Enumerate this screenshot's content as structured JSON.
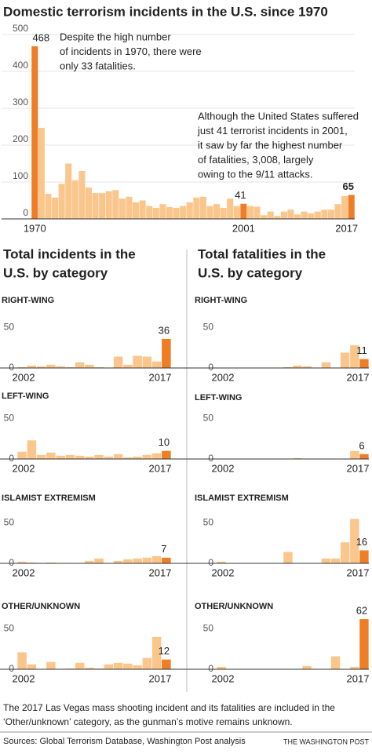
{
  "chart_data": [
    {
      "type": "bar",
      "title": "Domestic terrorism incidents in the U.S. since 1970",
      "categories": [
        "1970",
        null,
        null,
        null,
        null,
        null,
        null,
        null,
        null,
        null,
        null,
        null,
        null,
        null,
        null,
        null,
        null,
        null,
        null,
        null,
        null,
        null,
        null,
        null,
        null,
        null,
        null,
        null,
        null,
        null,
        null,
        "2001",
        null,
        null,
        null,
        null,
        null,
        null,
        null,
        null,
        null,
        null,
        null,
        null,
        null,
        null,
        null,
        "2017"
      ],
      "values": [
        468,
        247,
        68,
        58,
        95,
        150,
        105,
        130,
        85,
        70,
        70,
        75,
        78,
        55,
        60,
        45,
        50,
        35,
        30,
        40,
        32,
        30,
        35,
        45,
        58,
        60,
        35,
        40,
        30,
        55,
        35,
        41,
        35,
        33,
        10,
        20,
        8,
        20,
        25,
        12,
        20,
        15,
        20,
        25,
        25,
        40,
        62,
        65
      ],
      "color": "#fbc68c",
      "highlight_color": "#ee7d25",
      "highlight": [
        "1970",
        "2001",
        "2017"
      ],
      "ylim": [
        0,
        500
      ],
      "yticks": [
        0,
        100,
        200,
        300,
        400,
        500
      ],
      "grid": true,
      "annotations": [
        [
          "Despite the high number",
          "of incidents in 1970, there were",
          "only 33 fatalities."
        ],
        [
          "Although the United States suffered",
          "just 41 terrorist incidents in 2001,",
          "it saw by far the highest number",
          "of fatalities, 3,008, largely",
          "owing to the 9/11 attacks."
        ]
      ]
    },
    {
      "type": "bar",
      "title": "RIGHT-WING",
      "categories": [
        "2002",
        null,
        null,
        null,
        null,
        null,
        null,
        null,
        null,
        null,
        null,
        null,
        null,
        null,
        null,
        "2017"
      ],
      "values": [
        1,
        3,
        2,
        4,
        2,
        1,
        7,
        4,
        1,
        0,
        14,
        4,
        15,
        14,
        8,
        36
      ],
      "color": "#fbc68c",
      "highlight_color": "#ee7d25",
      "highlight": [
        "2017"
      ],
      "ylim": [
        0,
        65
      ],
      "yticks": [
        0,
        50
      ],
      "grid": false
    },
    {
      "type": "bar",
      "title": "LEFT-WING",
      "categories": [
        "2002",
        null,
        null,
        null,
        null,
        null,
        null,
        null,
        null,
        null,
        null,
        null,
        null,
        null,
        null,
        "2017"
      ],
      "values": [
        9,
        23,
        5,
        8,
        4,
        5,
        4,
        3,
        5,
        3,
        6,
        2,
        3,
        5,
        7,
        10
      ],
      "color": "#fbc68c",
      "highlight_color": "#ee7d25",
      "highlight": [
        "2017"
      ],
      "ylim": [
        0,
        65
      ],
      "yticks": [
        0,
        50
      ],
      "grid": false
    },
    {
      "type": "bar",
      "title": "ISLAMIST EXTREMISM",
      "categories": [
        "2002",
        null,
        null,
        null,
        null,
        null,
        null,
        null,
        null,
        null,
        null,
        null,
        null,
        null,
        null,
        "2017"
      ],
      "values": [
        2,
        1,
        0,
        1,
        0,
        0,
        0,
        3,
        6,
        0,
        3,
        5,
        6,
        7,
        9,
        7
      ],
      "color": "#fbc68c",
      "highlight_color": "#ee7d25",
      "highlight": [
        "2017"
      ],
      "ylim": [
        0,
        65
      ],
      "yticks": [
        0,
        50
      ],
      "grid": false
    },
    {
      "type": "bar",
      "title": "OTHER/UNKNOWN",
      "categories": [
        "2002",
        null,
        null,
        null,
        null,
        null,
        null,
        null,
        null,
        null,
        null,
        null,
        null,
        null,
        null,
        "2017"
      ],
      "values": [
        21,
        6,
        0,
        9,
        0,
        1,
        8,
        2,
        1,
        6,
        8,
        7,
        5,
        14,
        40,
        12
      ],
      "color": "#fbc68c",
      "highlight_color": "#ee7d25",
      "highlight": [
        "2017"
      ],
      "ylim": [
        0,
        65
      ],
      "yticks": [
        0,
        50
      ],
      "grid": false
    },
    {
      "type": "bar",
      "title": "RIGHT-WING",
      "categories": [
        "2002",
        null,
        null,
        null,
        null,
        null,
        null,
        null,
        null,
        null,
        null,
        null,
        null,
        null,
        null,
        "2017"
      ],
      "values": [
        0,
        0,
        0,
        0,
        0,
        0,
        0,
        1,
        3,
        2,
        0,
        7,
        0,
        19,
        28,
        11
      ],
      "color": "#fbc68c",
      "highlight_color": "#ee7d25",
      "highlight": [
        "2017"
      ],
      "ylim": [
        0,
        65
      ],
      "yticks": [
        0,
        50
      ],
      "grid": false
    },
    {
      "type": "bar",
      "title": "LEFT-WING",
      "categories": [
        "2002",
        null,
        null,
        null,
        null,
        null,
        null,
        null,
        null,
        null,
        null,
        null,
        null,
        null,
        null,
        "2017"
      ],
      "values": [
        0,
        0,
        0,
        0,
        0,
        0,
        0,
        0,
        1,
        0,
        0,
        0,
        0,
        0,
        10,
        6
      ],
      "color": "#fbc68c",
      "highlight_color": "#ee7d25",
      "highlight": [
        "2017"
      ],
      "ylim": [
        0,
        65
      ],
      "yticks": [
        0,
        50
      ],
      "grid": false
    },
    {
      "type": "bar",
      "title": "ISLAMIST EXTREMISM",
      "categories": [
        "2002",
        null,
        null,
        null,
        null,
        null,
        null,
        null,
        null,
        null,
        null,
        null,
        null,
        null,
        null,
        "2017"
      ],
      "values": [
        2,
        0,
        0,
        0,
        0,
        0,
        0,
        14,
        0,
        0,
        0,
        6,
        6,
        26,
        55,
        16
      ],
      "color": "#fbc68c",
      "highlight_color": "#ee7d25",
      "highlight": [
        "2017"
      ],
      "ylim": [
        0,
        65
      ],
      "yticks": [
        0,
        50
      ],
      "grid": false
    },
    {
      "type": "bar",
      "title": "OTHER/UNKNOWN",
      "categories": [
        "2002",
        null,
        null,
        null,
        null,
        null,
        null,
        null,
        null,
        null,
        null,
        null,
        null,
        null,
        null,
        "2017"
      ],
      "values": [
        3,
        0,
        0,
        0,
        0,
        0,
        0,
        0,
        0,
        4,
        0,
        0,
        16,
        0,
        3,
        62
      ],
      "color": "#fbc68c",
      "highlight_color": "#ee7d25",
      "highlight": [
        "2017"
      ],
      "ylim": [
        0,
        65
      ],
      "yticks": [
        0,
        50
      ],
      "grid": false
    }
  ],
  "headings": [
    [
      "Total incidents in the",
      "U.S. by category"
    ],
    [
      "Total fatalities in the",
      "U.S. by category"
    ]
  ],
  "footnote": [
    "The 2017 Las Vegas mass shooting incident and its fatalities are included in the",
    "‘Other/unknown’ category, as the gunman’s motive remains unknown."
  ],
  "source": "Sources: Global Terrorism Database, Washington Post analysis",
  "credit": "THE WASHINGTON POST"
}
